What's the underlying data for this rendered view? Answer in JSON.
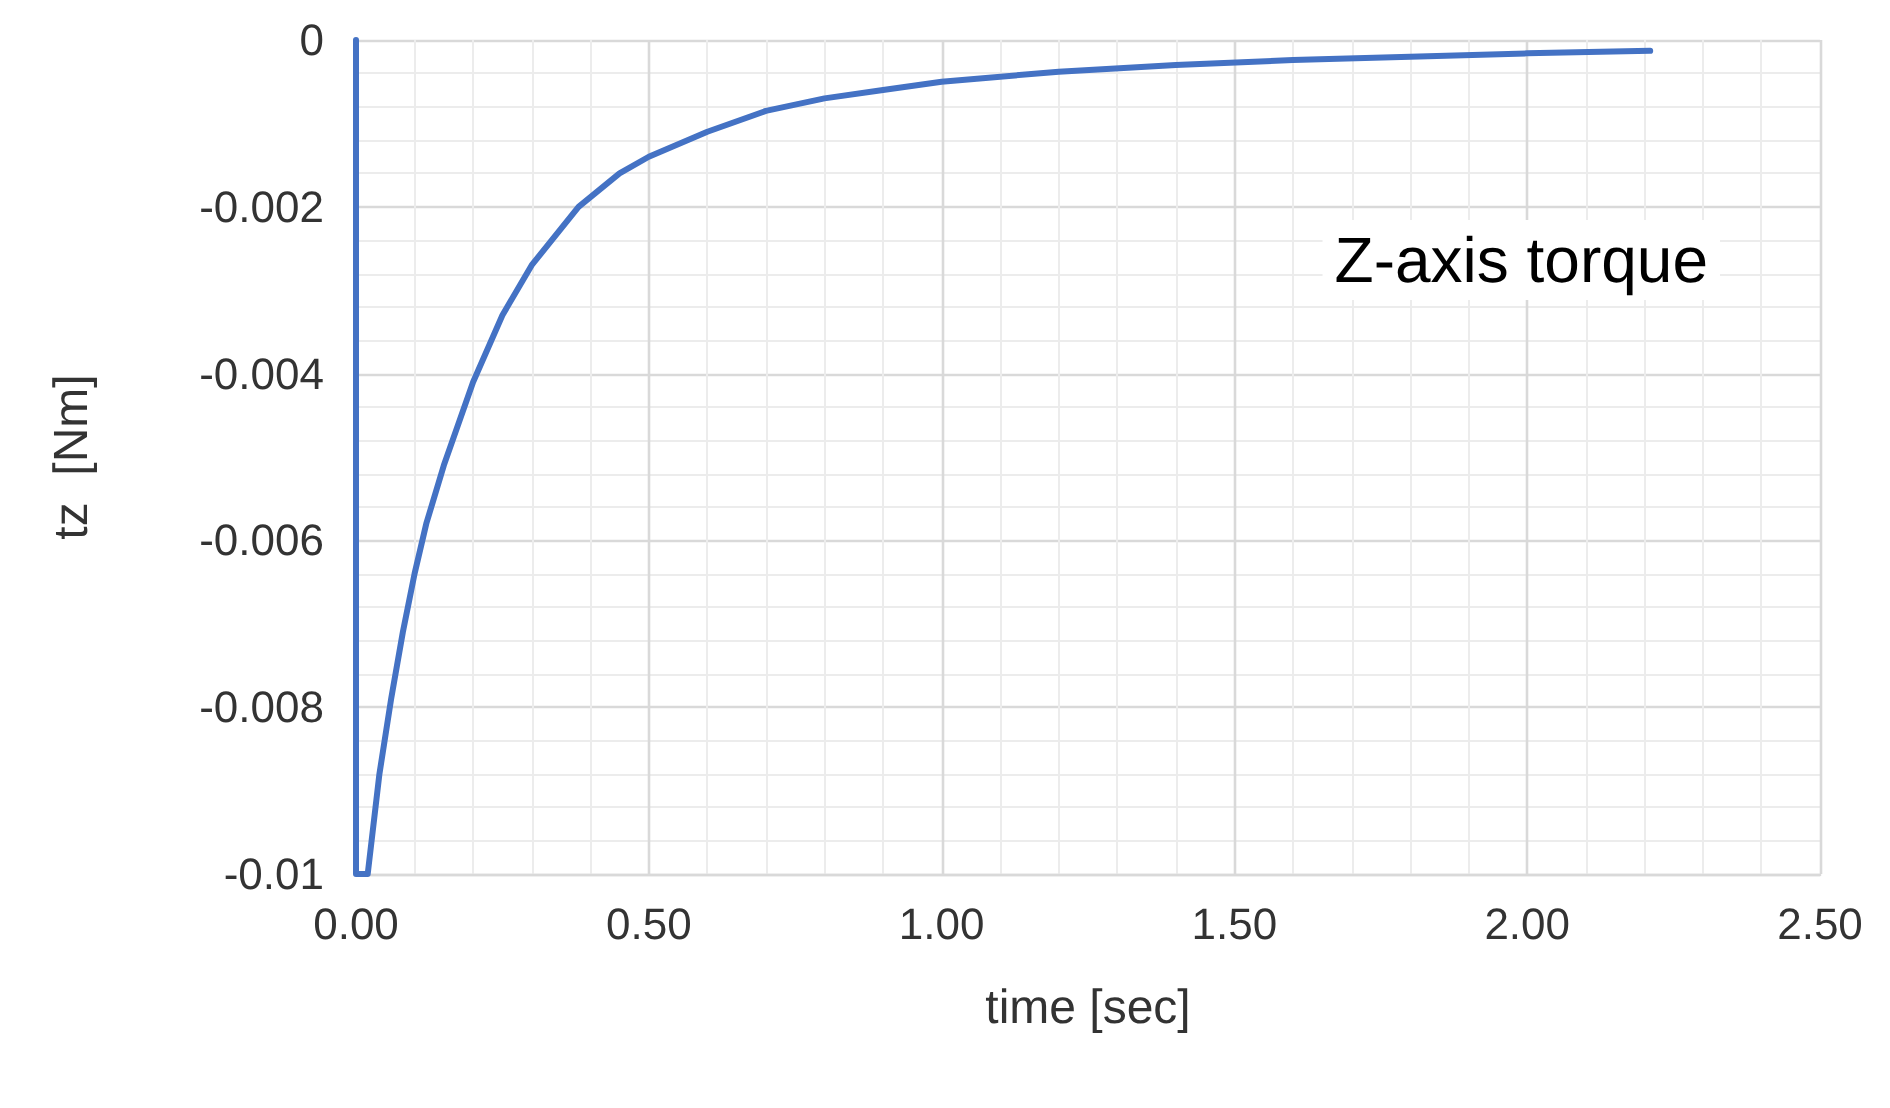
{
  "chart_data": {
    "type": "line",
    "xlabel": "time [sec]",
    "ylabel": "tz  [Nm]",
    "annotations": [
      "Z-axis torque"
    ],
    "xlim": [
      0,
      2.5
    ],
    "xticks": [
      {
        "value": 0,
        "label": "0.00"
      },
      {
        "value": 0.5,
        "label": "0.50"
      },
      {
        "value": 1,
        "label": "1.00"
      },
      {
        "value": 1.5,
        "label": "1.50"
      },
      {
        "value": 2,
        "label": "2.00"
      },
      {
        "value": 2.5,
        "label": "2.50"
      }
    ],
    "ylim": [
      -0.01,
      0
    ],
    "yticks": [
      -0.01,
      -0.008,
      -0.006,
      -0.004,
      -0.002,
      0
    ],
    "grid": true,
    "marker": "none",
    "line_style": "solid",
    "series": [
      {
        "color": "#4472c4",
        "x": [
          0,
          0,
          0.02,
          0.04,
          0.06,
          0.08,
          0.1,
          0.12,
          0.15,
          0.2,
          0.25,
          0.3,
          0.38,
          0.45,
          0.5,
          0.6,
          0.7,
          0.8,
          0.9,
          1.0,
          1.2,
          1.4,
          1.6,
          1.8,
          2.0,
          2.21
        ],
        "values": [
          0,
          -0.01,
          -0.01,
          -0.0088,
          -0.0079,
          -0.0071,
          -0.0064,
          -0.0058,
          -0.0051,
          -0.0041,
          -0.0033,
          -0.0027,
          -0.002,
          -0.0016,
          -0.0014,
          -0.0011,
          -0.00085,
          -0.0007,
          -0.0006,
          -0.0005,
          -0.00038,
          -0.0003,
          -0.00024,
          -0.0002,
          -0.00016,
          -0.00013
        ]
      }
    ]
  }
}
